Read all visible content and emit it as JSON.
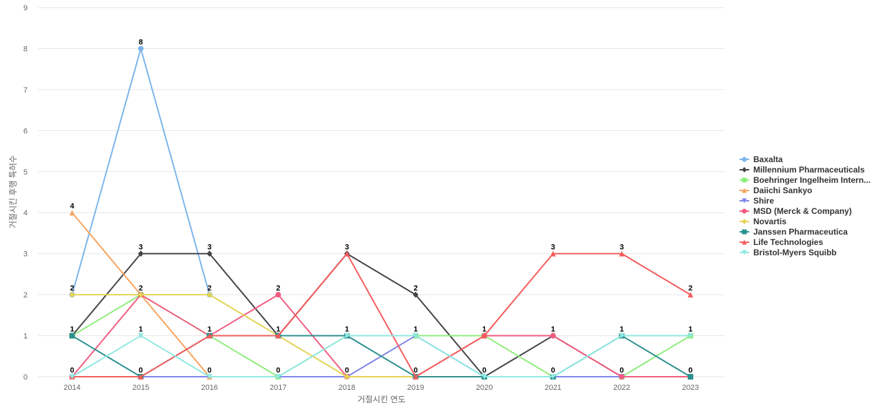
{
  "chart_data": {
    "type": "line",
    "title": "",
    "xlabel": "거절시킨 연도",
    "ylabel": "거절시킨 후행 특허수",
    "ylim": [
      0,
      9
    ],
    "yticks": [
      "0",
      "1",
      "2",
      "3",
      "4",
      "5",
      "6",
      "7",
      "8",
      "9"
    ],
    "grid": true,
    "legend_position": "right",
    "categories": [
      "2014",
      "2015",
      "2016",
      "2017",
      "2018",
      "2019",
      "2020",
      "2021",
      "2022",
      "2023"
    ],
    "series": [
      {
        "name": "Baxalta",
        "color": "#7cb5ec",
        "marker": "circle",
        "values": [
          2,
          8,
          2,
          null,
          null,
          null,
          null,
          null,
          null,
          null
        ]
      },
      {
        "name": "Millennium Pharmaceuticals",
        "color": "#434348",
        "marker": "diamond",
        "values": [
          1,
          3,
          3,
          1,
          3,
          2,
          0,
          1,
          0,
          0
        ]
      },
      {
        "name": "Boehringer Ingelheim Intern...",
        "color": "#90ed7d",
        "marker": "square",
        "values": [
          1,
          2,
          1,
          0,
          1,
          1,
          1,
          0,
          0,
          1
        ]
      },
      {
        "name": "Daiichi Sankyo",
        "color": "#f7a35c",
        "marker": "triangle",
        "values": [
          4,
          2,
          0,
          null,
          null,
          null,
          null,
          null,
          null,
          null
        ]
      },
      {
        "name": "Shire",
        "color": "#8085e9",
        "marker": "triangle-down",
        "values": [
          0,
          0,
          0,
          0,
          0,
          1,
          0,
          0,
          0,
          0
        ]
      },
      {
        "name": "MSD (Merck & Company)",
        "color": "#f15c80",
        "marker": "circle",
        "values": [
          0,
          2,
          1,
          2,
          0,
          0,
          1,
          1,
          0,
          0
        ]
      },
      {
        "name": "Novartis",
        "color": "#e4d354",
        "marker": "diamond",
        "values": [
          2,
          2,
          2,
          1,
          0,
          0,
          null,
          null,
          null,
          null
        ]
      },
      {
        "name": "Janssen Pharmaceutica",
        "color": "#2b908f",
        "marker": "square",
        "values": [
          1,
          0,
          1,
          1,
          1,
          0,
          0,
          0,
          1,
          0
        ]
      },
      {
        "name": "Life Technologies",
        "color": "#f45b5b",
        "marker": "triangle",
        "values": [
          0,
          0,
          1,
          1,
          3,
          0,
          1,
          3,
          3,
          2
        ]
      },
      {
        "name": "Bristol-Myers Squibb",
        "color": "#91e8e1",
        "marker": "triangle-down",
        "values": [
          0,
          1,
          0,
          0,
          1,
          1,
          0,
          0,
          1,
          1
        ]
      }
    ],
    "data_labels": [
      {
        "x": "2014",
        "label": "4",
        "value": 4
      },
      {
        "x": "2014",
        "label": "2",
        "value": 2
      },
      {
        "x": "2014",
        "label": "1",
        "value": 1
      },
      {
        "x": "2014",
        "label": "0",
        "value": 0
      },
      {
        "x": "2015",
        "label": "8",
        "value": 8
      },
      {
        "x": "2015",
        "label": "3",
        "value": 3
      },
      {
        "x": "2015",
        "label": "2",
        "value": 2
      },
      {
        "x": "2015",
        "label": "1",
        "value": 1
      },
      {
        "x": "2015",
        "label": "0",
        "value": 0
      },
      {
        "x": "2016",
        "label": "3",
        "value": 3
      },
      {
        "x": "2016",
        "label": "2",
        "value": 2
      },
      {
        "x": "2016",
        "label": "1",
        "value": 1
      },
      {
        "x": "2016",
        "label": "0",
        "value": 0
      },
      {
        "x": "2017",
        "label": "2",
        "value": 2
      },
      {
        "x": "2017",
        "label": "1",
        "value": 1
      },
      {
        "x": "2017",
        "label": "0",
        "value": 0
      },
      {
        "x": "2018",
        "label": "3",
        "value": 3
      },
      {
        "x": "2018",
        "label": "1",
        "value": 1
      },
      {
        "x": "2018",
        "label": "0",
        "value": 0
      },
      {
        "x": "2019",
        "label": "2",
        "value": 2
      },
      {
        "x": "2019",
        "label": "1",
        "value": 1
      },
      {
        "x": "2019",
        "label": "0",
        "value": 0
      },
      {
        "x": "2020",
        "label": "1",
        "value": 1
      },
      {
        "x": "2020",
        "label": "0",
        "value": 0
      },
      {
        "x": "2021",
        "label": "3",
        "value": 3
      },
      {
        "x": "2021",
        "label": "1",
        "value": 1
      },
      {
        "x": "2021",
        "label": "0",
        "value": 0
      },
      {
        "x": "2022",
        "label": "3",
        "value": 3
      },
      {
        "x": "2022",
        "label": "1",
        "value": 1
      },
      {
        "x": "2022",
        "label": "0",
        "value": 0
      },
      {
        "x": "2023",
        "label": "2",
        "value": 2
      },
      {
        "x": "2023",
        "label": "1",
        "value": 1
      },
      {
        "x": "2023",
        "label": "0",
        "value": 0
      }
    ]
  }
}
